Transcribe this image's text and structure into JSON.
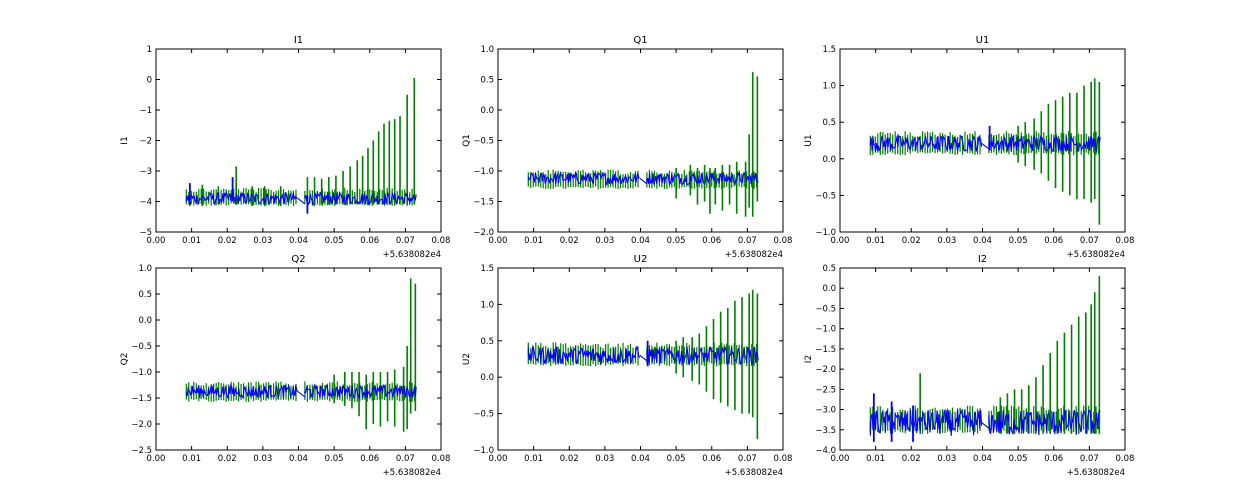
{
  "chart_data": [
    {
      "type": "line",
      "title": "I1",
      "ylabel": "I1",
      "xlabel": "",
      "x_offset_label": "+5.638082e4",
      "xlim": [
        0.0,
        0.08
      ],
      "ylim": [
        -5,
        1
      ],
      "x_ticks": [
        "0.00",
        "0.01",
        "0.02",
        "0.03",
        "0.04",
        "0.05",
        "0.06",
        "0.07",
        "0.08"
      ],
      "y_ticks": [
        "1",
        "0",
        "−1",
        "−2",
        "−3",
        "−4",
        "−5"
      ],
      "series_colors": {
        "green": "#007f00",
        "blue": "#0000ff"
      },
      "band": {
        "green_low": -4.15,
        "green_high": -3.55,
        "blue_low": -4.1,
        "blue_high": -3.7
      },
      "green_spikes_early": [
        {
          "x": 0.0095,
          "low": -4.15,
          "high": -3.4
        },
        {
          "x": 0.013,
          "low": -4.15,
          "high": -3.45
        },
        {
          "x": 0.0175,
          "low": -4.1,
          "high": -3.5
        },
        {
          "x": 0.0225,
          "low": -4.1,
          "high": -2.85
        },
        {
          "x": 0.027,
          "low": -4.15,
          "high": -3.5
        },
        {
          "x": 0.0305,
          "low": -4.15,
          "high": -3.5
        },
        {
          "x": 0.035,
          "low": -4.15,
          "high": -3.5
        }
      ],
      "green_spikes_late": [
        {
          "x": 0.0425,
          "low": -4.2,
          "high": -3.2
        },
        {
          "x": 0.0445,
          "low": -4.15,
          "high": -3.2
        },
        {
          "x": 0.0465,
          "low": -4.1,
          "high": -3.25
        },
        {
          "x": 0.0485,
          "low": -4.1,
          "high": -3.2
        },
        {
          "x": 0.0505,
          "low": -4.1,
          "high": -3.15
        },
        {
          "x": 0.0525,
          "low": -4.1,
          "high": -3.0
        },
        {
          "x": 0.0545,
          "low": -4.1,
          "high": -2.85
        },
        {
          "x": 0.0565,
          "low": -4.1,
          "high": -2.65
        },
        {
          "x": 0.058,
          "low": -4.1,
          "high": -2.5
        },
        {
          "x": 0.0595,
          "low": -4.1,
          "high": -2.25
        },
        {
          "x": 0.061,
          "low": -4.1,
          "high": -2.0
        },
        {
          "x": 0.0625,
          "low": -4.1,
          "high": -1.7
        },
        {
          "x": 0.064,
          "low": -4.1,
          "high": -1.45
        },
        {
          "x": 0.0655,
          "low": -4.1,
          "high": -1.35
        },
        {
          "x": 0.067,
          "low": -4.1,
          "high": -1.3
        },
        {
          "x": 0.0685,
          "low": -4.1,
          "high": -1.2
        },
        {
          "x": 0.0705,
          "low": -4.1,
          "high": -0.5
        },
        {
          "x": 0.0725,
          "low": -4.1,
          "high": 0.05
        }
      ],
      "blue_features": [
        {
          "x": 0.0095,
          "low": -4.1,
          "high": -3.4
        },
        {
          "x": 0.0215,
          "low": -4.0,
          "high": -3.2
        },
        {
          "x": 0.0425,
          "low": -4.4,
          "high": -3.8
        }
      ]
    },
    {
      "type": "line",
      "title": "Q1",
      "ylabel": "Q1",
      "xlabel": "",
      "x_offset_label": "+5.638082e4",
      "xlim": [
        0.0,
        0.08
      ],
      "ylim": [
        -2.0,
        1.0
      ],
      "x_ticks": [
        "0.00",
        "0.01",
        "0.02",
        "0.03",
        "0.04",
        "0.05",
        "0.06",
        "0.07",
        "0.08"
      ],
      "y_ticks": [
        "1.0",
        "0.5",
        "0.0",
        "−0.5",
        "−1.0",
        "−1.5",
        "−2.0"
      ],
      "series_colors": {
        "green": "#007f00",
        "blue": "#0000ff"
      },
      "band": {
        "green_low": -1.3,
        "green_high": -0.98,
        "blue_low": -1.22,
        "blue_high": -1.02
      },
      "green_spikes_early": [],
      "green_spikes_late": [
        {
          "x": 0.05,
          "low": -1.45,
          "high": -0.95
        },
        {
          "x": 0.054,
          "low": -1.4,
          "high": -0.9
        },
        {
          "x": 0.056,
          "low": -1.55,
          "high": -0.95
        },
        {
          "x": 0.058,
          "low": -1.5,
          "high": -0.9
        },
        {
          "x": 0.0595,
          "low": -1.7,
          "high": -0.95
        },
        {
          "x": 0.061,
          "low": -1.55,
          "high": -0.95
        },
        {
          "x": 0.063,
          "low": -1.65,
          "high": -0.9
        },
        {
          "x": 0.065,
          "low": -1.55,
          "high": -0.9
        },
        {
          "x": 0.067,
          "low": -1.7,
          "high": -0.85
        },
        {
          "x": 0.0695,
          "low": -1.75,
          "high": -0.85
        },
        {
          "x": 0.0705,
          "low": -1.6,
          "high": -0.4
        },
        {
          "x": 0.0715,
          "low": -1.75,
          "high": 0.62
        },
        {
          "x": 0.0728,
          "low": -1.5,
          "high": 0.55
        }
      ],
      "blue_features": []
    },
    {
      "type": "line",
      "title": "U1",
      "ylabel": "U1",
      "xlabel": "",
      "x_offset_label": "+5.638082e4",
      "xlim": [
        0.0,
        0.08
      ],
      "ylim": [
        -1.0,
        1.5
      ],
      "x_ticks": [
        "0.00",
        "0.01",
        "0.02",
        "0.03",
        "0.04",
        "0.05",
        "0.06",
        "0.07",
        "0.08"
      ],
      "y_ticks": [
        "1.5",
        "1.0",
        "0.5",
        "0.0",
        "−0.5",
        "−1.0"
      ],
      "series_colors": {
        "green": "#007f00",
        "blue": "#0000ff"
      },
      "band": {
        "green_low": 0.05,
        "green_high": 0.38,
        "blue_low": 0.1,
        "blue_high": 0.32
      },
      "green_spikes_early": [],
      "green_spikes_late": [
        {
          "x": 0.05,
          "low": -0.05,
          "high": 0.45
        },
        {
          "x": 0.052,
          "low": -0.1,
          "high": 0.5
        },
        {
          "x": 0.0545,
          "low": -0.15,
          "high": 0.55
        },
        {
          "x": 0.0565,
          "low": -0.2,
          "high": 0.65
        },
        {
          "x": 0.0585,
          "low": -0.3,
          "high": 0.75
        },
        {
          "x": 0.0605,
          "low": -0.4,
          "high": 0.8
        },
        {
          "x": 0.0625,
          "low": -0.45,
          "high": 0.85
        },
        {
          "x": 0.0645,
          "low": -0.5,
          "high": 0.9
        },
        {
          "x": 0.0665,
          "low": -0.55,
          "high": 0.9
        },
        {
          "x": 0.0685,
          "low": -0.55,
          "high": 1.0
        },
        {
          "x": 0.0705,
          "low": -0.6,
          "high": 1.05
        },
        {
          "x": 0.0715,
          "low": -0.55,
          "high": 1.1
        },
        {
          "x": 0.0728,
          "low": -0.9,
          "high": 1.05
        }
      ],
      "blue_features": [
        {
          "x": 0.042,
          "low": 0.15,
          "high": 0.45
        }
      ]
    },
    {
      "type": "line",
      "title": "Q2",
      "ylabel": "Q2",
      "xlabel": "",
      "x_offset_label": "+5.638082e4",
      "xlim": [
        0.0,
        0.08
      ],
      "ylim": [
        -2.5,
        1.0
      ],
      "x_ticks": [
        "0.00",
        "0.01",
        "0.02",
        "0.03",
        "0.04",
        "0.05",
        "0.06",
        "0.07",
        "0.08"
      ],
      "y_ticks": [
        "1.0",
        "0.5",
        "0.0",
        "−0.5",
        "−1.0",
        "−1.5",
        "−2.0",
        "−2.5"
      ],
      "series_colors": {
        "green": "#007f00",
        "blue": "#0000ff"
      },
      "band": {
        "green_low": -1.58,
        "green_high": -1.18,
        "blue_low": -1.5,
        "blue_high": -1.25
      },
      "green_spikes_early": [],
      "green_spikes_late": [
        {
          "x": 0.05,
          "low": -1.6,
          "high": -1.05
        },
        {
          "x": 0.053,
          "low": -1.65,
          "high": -1.0
        },
        {
          "x": 0.055,
          "low": -1.7,
          "high": -1.0
        },
        {
          "x": 0.057,
          "low": -1.85,
          "high": -1.0
        },
        {
          "x": 0.059,
          "low": -2.1,
          "high": -1.05
        },
        {
          "x": 0.061,
          "low": -2.0,
          "high": -1.0
        },
        {
          "x": 0.063,
          "low": -2.05,
          "high": -1.0
        },
        {
          "x": 0.065,
          "low": -1.95,
          "high": -1.0
        },
        {
          "x": 0.067,
          "low": -2.05,
          "high": -0.95
        },
        {
          "x": 0.0695,
          "low": -2.15,
          "high": -0.9
        },
        {
          "x": 0.0705,
          "low": -2.1,
          "high": -0.5
        },
        {
          "x": 0.0715,
          "low": -1.8,
          "high": 0.8
        },
        {
          "x": 0.0728,
          "low": -1.75,
          "high": 0.7
        }
      ],
      "blue_features": []
    },
    {
      "type": "line",
      "title": "U2",
      "ylabel": "U2",
      "xlabel": "",
      "x_offset_label": "+5.638082e4",
      "xlim": [
        0.0,
        0.08
      ],
      "ylim": [
        -1.0,
        1.5
      ],
      "x_ticks": [
        "0.00",
        "0.01",
        "0.02",
        "0.03",
        "0.04",
        "0.05",
        "0.06",
        "0.07",
        "0.08"
      ],
      "y_ticks": [
        "1.5",
        "1.0",
        "0.5",
        "0.0",
        "−0.5",
        "−1.0"
      ],
      "series_colors": {
        "green": "#007f00",
        "blue": "#0000ff"
      },
      "band": {
        "green_low": 0.15,
        "green_high": 0.48,
        "blue_low": 0.18,
        "blue_high": 0.42
      },
      "green_spikes_early": [],
      "green_spikes_late": [
        {
          "x": 0.05,
          "low": 0.05,
          "high": 0.5
        },
        {
          "x": 0.052,
          "low": 0.0,
          "high": 0.55
        },
        {
          "x": 0.0545,
          "low": -0.05,
          "high": 0.55
        },
        {
          "x": 0.0565,
          "low": -0.1,
          "high": 0.6
        },
        {
          "x": 0.0585,
          "low": -0.2,
          "high": 0.7
        },
        {
          "x": 0.0605,
          "low": -0.3,
          "high": 0.8
        },
        {
          "x": 0.0625,
          "low": -0.35,
          "high": 0.9
        },
        {
          "x": 0.0645,
          "low": -0.4,
          "high": 0.95
        },
        {
          "x": 0.0665,
          "low": -0.45,
          "high": 1.05
        },
        {
          "x": 0.0685,
          "low": -0.5,
          "high": 1.1
        },
        {
          "x": 0.0705,
          "low": -0.5,
          "high": 1.15
        },
        {
          "x": 0.0715,
          "low": -0.55,
          "high": 1.2
        },
        {
          "x": 0.0728,
          "low": -0.85,
          "high": 1.15
        }
      ],
      "blue_features": [
        {
          "x": 0.042,
          "low": 0.15,
          "high": 0.5
        }
      ]
    },
    {
      "type": "line",
      "title": "I2",
      "ylabel": "I2",
      "xlabel": "",
      "x_offset_label": "+5.638082e4",
      "xlim": [
        0.0,
        0.08
      ],
      "ylim": [
        -4.0,
        0.5
      ],
      "x_ticks": [
        "0.00",
        "0.01",
        "0.02",
        "0.03",
        "0.04",
        "0.05",
        "0.06",
        "0.07",
        "0.08"
      ],
      "y_ticks": [
        "0.5",
        "0.0",
        "−0.5",
        "−1.0",
        "−1.5",
        "−2.0",
        "−2.5",
        "−3.0",
        "−3.5",
        "−4.0"
      ],
      "series_colors": {
        "green": "#007f00",
        "blue": "#0000ff"
      },
      "band": {
        "green_low": -3.6,
        "green_high": -2.9,
        "blue_low": -3.65,
        "blue_high": -3.0
      },
      "green_spikes_early": [
        {
          "x": 0.0225,
          "low": -3.5,
          "high": -2.1
        }
      ],
      "green_spikes_late": [
        {
          "x": 0.045,
          "low": -3.6,
          "high": -2.7
        },
        {
          "x": 0.047,
          "low": -3.6,
          "high": -2.6
        },
        {
          "x": 0.049,
          "low": -3.6,
          "high": -2.5
        },
        {
          "x": 0.051,
          "low": -3.6,
          "high": -2.5
        },
        {
          "x": 0.053,
          "low": -3.6,
          "high": -2.4
        },
        {
          "x": 0.055,
          "low": -3.6,
          "high": -2.2
        },
        {
          "x": 0.057,
          "low": -3.6,
          "high": -1.9
        },
        {
          "x": 0.059,
          "low": -3.6,
          "high": -1.6
        },
        {
          "x": 0.061,
          "low": -3.6,
          "high": -1.3
        },
        {
          "x": 0.063,
          "low": -3.6,
          "high": -1.1
        },
        {
          "x": 0.065,
          "low": -3.6,
          "high": -0.9
        },
        {
          "x": 0.067,
          "low": -3.6,
          "high": -0.7
        },
        {
          "x": 0.069,
          "low": -3.6,
          "high": -0.6
        },
        {
          "x": 0.0705,
          "low": -3.6,
          "high": -0.4
        },
        {
          "x": 0.0715,
          "low": -3.6,
          "high": -0.1
        },
        {
          "x": 0.0728,
          "low": -3.6,
          "high": 0.3
        }
      ],
      "blue_features": [
        {
          "x": 0.0095,
          "low": -3.8,
          "high": -2.6
        },
        {
          "x": 0.0145,
          "low": -3.8,
          "high": -2.8
        },
        {
          "x": 0.0205,
          "low": -3.8,
          "high": -2.9
        }
      ]
    }
  ]
}
